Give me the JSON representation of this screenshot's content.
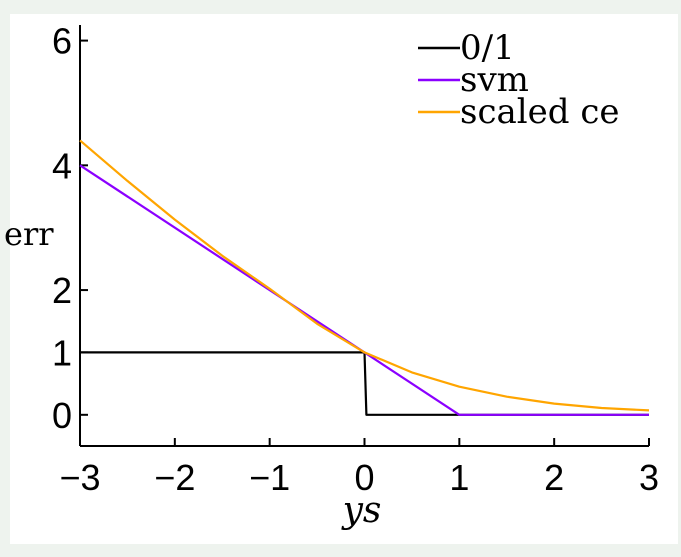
{
  "chart_data": {
    "type": "line",
    "title": "",
    "xlabel": "ys",
    "ylabel": "err",
    "xlim": [
      -3,
      3
    ],
    "ylim": [
      -0.5,
      6.25
    ],
    "xticks": [
      -3,
      -2,
      -1,
      0,
      1,
      2,
      3
    ],
    "xtick_labels": [
      "−3",
      "−2",
      "−1",
      "0",
      "1",
      "2",
      "3"
    ],
    "yticks": [
      0,
      1,
      2,
      4,
      6
    ],
    "ytick_labels": [
      "0",
      "1",
      "2",
      "4",
      "6"
    ],
    "grid": false,
    "legend": "top-right",
    "series": [
      {
        "name": "0/1",
        "color": "#000000",
        "x": [
          -3,
          0,
          0.02,
          3
        ],
        "y": [
          1,
          1,
          0,
          0
        ]
      },
      {
        "name": "svm",
        "color": "#8b00ff",
        "x": [
          -3,
          1,
          3
        ],
        "y": [
          4,
          0,
          0
        ]
      },
      {
        "name": "scaled ce",
        "color": "#ffa500",
        "x": [
          -3,
          -2.5,
          -2,
          -1.5,
          -1,
          -0.5,
          0,
          0.5,
          1,
          1.5,
          2,
          2.5,
          3
        ],
        "y": [
          4.4,
          3.75,
          3.13,
          2.55,
          2.02,
          1.46,
          1.0,
          0.68,
          0.45,
          0.29,
          0.18,
          0.11,
          0.07
        ]
      }
    ]
  }
}
